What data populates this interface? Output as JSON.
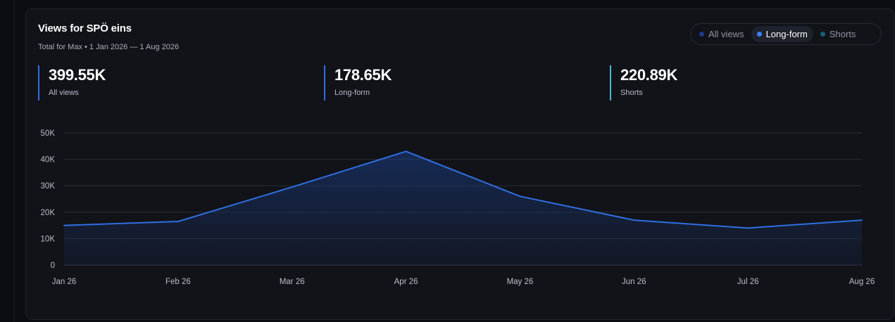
{
  "card": {
    "title": "Views for SPÖ eins",
    "subtitle": "Total for Max • 1 Jan 2026 — 1 Aug 2026"
  },
  "toggle": {
    "items": [
      {
        "label": "All views",
        "dot_color": "#1e3a8a",
        "active": false
      },
      {
        "label": "Long-form",
        "dot_color": "#3b82f6",
        "active": true
      },
      {
        "label": "Shorts",
        "dot_color": "#155e75",
        "active": false
      }
    ]
  },
  "stats": [
    {
      "value": "399.55K",
      "label": "All views",
      "accent": "#2f6fe0"
    },
    {
      "value": "178.65K",
      "label": "Long-form",
      "accent": "#2f6fe0"
    },
    {
      "value": "220.89K",
      "label": "Shorts",
      "accent": "#4fb6d6"
    }
  ],
  "chart_data": {
    "type": "area",
    "categories": [
      "Jan 26",
      "Feb 26",
      "Mar 26",
      "Apr 26",
      "May 26",
      "Jun 26",
      "Jul 26",
      "Aug 26"
    ],
    "series": [
      {
        "name": "Long-form",
        "values": [
          15000,
          16500,
          29500,
          43000,
          26000,
          17000,
          14000,
          17000
        ],
        "color": "#2f6fe0"
      }
    ],
    "yticks": [
      {
        "value": 0,
        "label": "0"
      },
      {
        "value": 10000,
        "label": "10K"
      },
      {
        "value": 20000,
        "label": "20K"
      },
      {
        "value": 30000,
        "label": "30K"
      },
      {
        "value": 40000,
        "label": "40K"
      },
      {
        "value": 50000,
        "label": "50K"
      }
    ],
    "ylim": [
      0,
      50000
    ],
    "grid": true
  }
}
